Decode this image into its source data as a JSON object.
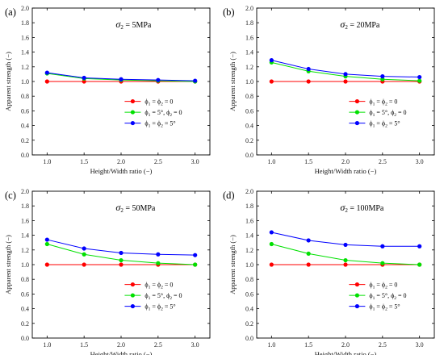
{
  "chart_data": [
    {
      "type": "line",
      "panel_label": "(a)",
      "annotation": {
        "symbol": "σ",
        "subscript": "2",
        "text": " = 5MPa"
      },
      "x": [
        1.0,
        1.5,
        2.0,
        2.5,
        3.0
      ],
      "x_tick_labels": [
        "1.0",
        "1.5",
        "2.0",
        "2.5",
        "3.0"
      ],
      "y_tick_labels": [
        "0.0",
        "0.2",
        "0.4",
        "0.6",
        "0.8",
        "1.0",
        "1.2",
        "1.4",
        "1.6",
        "1.8",
        "2.0"
      ],
      "xlabel": "Height/Width ratio (−)",
      "ylabel": "Apparent strength (−)",
      "xlim": [
        0.8,
        3.2
      ],
      "ylim": [
        0.0,
        2.0
      ],
      "grid": false,
      "legend_position": "bottom-right",
      "series": [
        {
          "name": "ϕ1 = ϕ2 = 0",
          "legend": {
            "main": "ϕ",
            "sub1": "1",
            "mid": " = ϕ",
            "sub2": "2",
            "tail": " = 0"
          },
          "color": "#ff0000",
          "values": [
            1.0,
            1.0,
            1.0,
            1.0,
            1.0
          ]
        },
        {
          "name": "ϕ1 = 5°, ϕ2 = 0",
          "legend": {
            "main": "ϕ",
            "sub1": "1",
            "mid": " = 5°, ϕ",
            "sub2": "2",
            "tail": " = 0"
          },
          "color": "#00e000",
          "values": [
            1.11,
            1.04,
            1.02,
            1.01,
            1.0
          ]
        },
        {
          "name": "ϕ1 = ϕ2 = 5°",
          "legend": {
            "main": "ϕ",
            "sub1": "1",
            "mid": " = ϕ",
            "sub2": "2",
            "tail": " = 5°"
          },
          "color": "#0000ff",
          "values": [
            1.12,
            1.05,
            1.03,
            1.02,
            1.01
          ]
        }
      ]
    },
    {
      "type": "line",
      "panel_label": "(b)",
      "annotation": {
        "symbol": "σ",
        "subscript": "2",
        "text": " = 20MPa"
      },
      "x": [
        1.0,
        1.5,
        2.0,
        2.5,
        3.0
      ],
      "x_tick_labels": [
        "1.0",
        "1.5",
        "2.0",
        "2.5",
        "3.0"
      ],
      "y_tick_labels": [
        "0.0",
        "0.2",
        "0.4",
        "0.6",
        "0.8",
        "1.0",
        "1.2",
        "1.4",
        "1.6",
        "1.8",
        "2.0"
      ],
      "xlabel": "Height/Width ratio (−)",
      "ylabel": "Apparent strength (−)",
      "xlim": [
        0.8,
        3.2
      ],
      "ylim": [
        0.0,
        2.0
      ],
      "grid": false,
      "legend_position": "bottom-right",
      "series": [
        {
          "name": "ϕ1 = ϕ2 = 0",
          "legend": {
            "main": "ϕ",
            "sub1": "1",
            "mid": " = ϕ",
            "sub2": "2",
            "tail": " = 0"
          },
          "color": "#ff0000",
          "values": [
            1.0,
            1.0,
            1.0,
            1.0,
            1.0
          ]
        },
        {
          "name": "ϕ1 = 5°, ϕ2 = 0",
          "legend": {
            "main": "ϕ",
            "sub1": "1",
            "mid": " = 5°, ϕ",
            "sub2": "2",
            "tail": " = 0"
          },
          "color": "#00e000",
          "values": [
            1.26,
            1.14,
            1.07,
            1.03,
            1.01
          ]
        },
        {
          "name": "ϕ1 = ϕ2 = 5°",
          "legend": {
            "main": "ϕ",
            "sub1": "1",
            "mid": " = ϕ",
            "sub2": "2",
            "tail": " = 5°"
          },
          "color": "#0000ff",
          "values": [
            1.29,
            1.17,
            1.1,
            1.07,
            1.06
          ]
        }
      ]
    },
    {
      "type": "line",
      "panel_label": "(c)",
      "annotation": {
        "symbol": "σ",
        "subscript": "2",
        "text": " = 50MPa"
      },
      "x": [
        1.0,
        1.5,
        2.0,
        2.5,
        3.0
      ],
      "x_tick_labels": [
        "1.0",
        "1.5",
        "2.0",
        "2.5",
        "3.0"
      ],
      "y_tick_labels": [
        "0.0",
        "0.2",
        "0.4",
        "0.6",
        "0.8",
        "1.0",
        "1.2",
        "1.4",
        "1.6",
        "1.8",
        "2.0"
      ],
      "xlabel": "Height/Width ratio (−)",
      "ylabel": "Apparent strength (−)",
      "xlim": [
        0.8,
        3.2
      ],
      "ylim": [
        0.0,
        2.0
      ],
      "grid": false,
      "legend_position": "bottom-right",
      "series": [
        {
          "name": "ϕ1 = ϕ2 = 0",
          "legend": {
            "main": "ϕ",
            "sub1": "1",
            "mid": " = ϕ",
            "sub2": "2",
            "tail": " = 0"
          },
          "color": "#ff0000",
          "values": [
            1.0,
            1.0,
            1.0,
            1.0,
            1.0
          ]
        },
        {
          "name": "ϕ1 = 5°, ϕ2 = 0",
          "legend": {
            "main": "ϕ",
            "sub1": "1",
            "mid": " = 5°, ϕ",
            "sub2": "2",
            "tail": " = 0"
          },
          "color": "#00e000",
          "values": [
            1.28,
            1.14,
            1.06,
            1.02,
            1.0
          ]
        },
        {
          "name": "ϕ1 = ϕ2 = 5°",
          "legend": {
            "main": "ϕ",
            "sub1": "1",
            "mid": " = ϕ",
            "sub2": "2",
            "tail": " = 5°"
          },
          "color": "#0000ff",
          "values": [
            1.34,
            1.22,
            1.16,
            1.14,
            1.13
          ]
        }
      ]
    },
    {
      "type": "line",
      "panel_label": "(d)",
      "annotation": {
        "symbol": "σ",
        "subscript": "2",
        "text": " = 100MPa"
      },
      "x": [
        1.0,
        1.5,
        2.0,
        2.5,
        3.0
      ],
      "x_tick_labels": [
        "1.0",
        "1.5",
        "2.0",
        "2.5",
        "3.0"
      ],
      "y_tick_labels": [
        "0.0",
        "0.2",
        "0.4",
        "0.6",
        "0.8",
        "1.0",
        "1.2",
        "1.4",
        "1.6",
        "1.8",
        "2.0"
      ],
      "xlabel": "Height/Width ratio (−)",
      "ylabel": "Apparent strength (−)",
      "xlim": [
        0.8,
        3.2
      ],
      "ylim": [
        0.0,
        2.0
      ],
      "grid": false,
      "legend_position": "bottom-right",
      "series": [
        {
          "name": "ϕ1 = ϕ2 = 0",
          "legend": {
            "main": "ϕ",
            "sub1": "1",
            "mid": " = ϕ",
            "sub2": "2",
            "tail": " = 0"
          },
          "color": "#ff0000",
          "values": [
            1.0,
            1.0,
            1.0,
            1.0,
            1.0
          ]
        },
        {
          "name": "ϕ1 = 5°, ϕ2 = 0",
          "legend": {
            "main": "ϕ",
            "sub1": "1",
            "mid": " = 5°, ϕ",
            "sub2": "2",
            "tail": " = 0"
          },
          "color": "#00e000",
          "values": [
            1.28,
            1.15,
            1.06,
            1.02,
            1.0
          ]
        },
        {
          "name": "ϕ1 = ϕ2 = 5°",
          "legend": {
            "main": "ϕ",
            "sub1": "1",
            "mid": " = ϕ",
            "sub2": "2",
            "tail": " = 5°"
          },
          "color": "#0000ff",
          "values": [
            1.44,
            1.33,
            1.27,
            1.25,
            1.25
          ]
        }
      ]
    }
  ]
}
